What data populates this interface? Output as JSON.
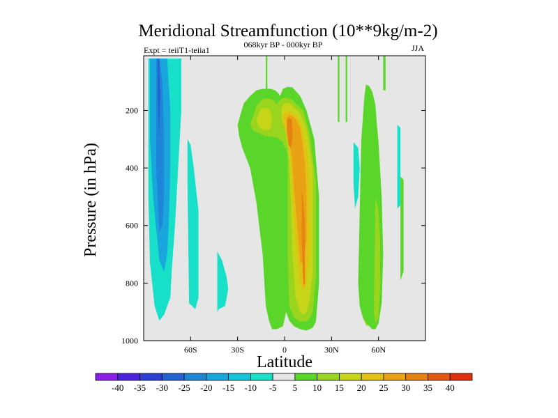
{
  "chart_data": {
    "type": "heatmap",
    "title": "Meridional Streamfunction (10**9kg/m-2)",
    "left_string": "Expt = teiiT1-teiia1",
    "center_string": "068kyr BP - 000kyr BP",
    "right_string": "JJA",
    "xlabel": "Latitude",
    "ylabel": "Pressure (in hPa)",
    "x_ticks": [
      {
        "value": -60,
        "label": "60S"
      },
      {
        "value": -30,
        "label": "30S"
      },
      {
        "value": 0,
        "label": "0"
      },
      {
        "value": 30,
        "label": "30N"
      },
      {
        "value": 60,
        "label": "60N"
      }
    ],
    "y_ticks": [
      {
        "value": 200,
        "label": "200"
      },
      {
        "value": 400,
        "label": "400"
      },
      {
        "value": 600,
        "label": "600"
      },
      {
        "value": 800,
        "label": "800"
      },
      {
        "value": 1000,
        "label": "1000"
      }
    ],
    "xlim": [
      -90,
      90
    ],
    "ylim": [
      1000,
      10
    ],
    "y_reversed": true,
    "grid": false,
    "background_color": "#e6e6e6",
    "colorbar": {
      "placement": "bottom",
      "levels": [
        -40,
        -35,
        -30,
        -25,
        -20,
        -15,
        -10,
        -5,
        5,
        10,
        15,
        20,
        25,
        30,
        35,
        40
      ],
      "labels": [
        "-40",
        "-35",
        "-30",
        "-25",
        "-20",
        "-15",
        "-10",
        "-5",
        "5",
        "10",
        "15",
        "20",
        "25",
        "30",
        "35",
        "40"
      ],
      "colors": [
        "#8a1fe6",
        "#4b22dd",
        "#2f3fd6",
        "#2661d4",
        "#1e86d6",
        "#18a6dc",
        "#14c4d9",
        "#18dfc8",
        "#e6e6e6",
        "#5ad62a",
        "#99d41e",
        "#c6d518",
        "#e1c114",
        "#e8a214",
        "#e58212",
        "#e2580f",
        "#df2f0c"
      ]
    },
    "regions": [
      {
        "level": -5,
        "lon": [
          -87,
          -86,
          -83,
          -80,
          -76,
          -72,
          -66,
          -66,
          -68,
          -70,
          -72,
          -73,
          -75,
          -77,
          -80,
          -83,
          -86,
          -87
        ],
        "p": [
          20,
          20,
          20,
          20,
          20,
          20,
          20,
          200,
          400,
          600,
          750,
          850,
          880,
          910,
          930,
          880,
          730,
          500
        ]
      },
      {
        "level": -15,
        "lon": [
          -86,
          -83,
          -79,
          -75,
          -73,
          -73,
          -74,
          -75,
          -77,
          -80,
          -84,
          -86
        ],
        "p": [
          20,
          20,
          20,
          20,
          200,
          400,
          600,
          700,
          760,
          720,
          500,
          300
        ]
      },
      {
        "level": -20,
        "lon": [
          -82,
          -80,
          -78,
          -77,
          -77,
          -78,
          -80,
          -82
        ],
        "p": [
          20,
          20,
          100,
          300,
          500,
          600,
          620,
          400
        ]
      },
      {
        "level": -25,
        "lon": [
          -81,
          -80,
          -79.5,
          -80,
          -81
        ],
        "p": [
          20,
          20,
          150,
          300,
          150
        ]
      },
      {
        "level": -5,
        "lon": [
          -62,
          -60,
          -58,
          -55,
          -55,
          -57,
          -61,
          -62
        ],
        "p": [
          300,
          320,
          400,
          550,
          850,
          890,
          870,
          450
        ]
      },
      {
        "level": -5,
        "lon": [
          -43,
          -40,
          -37,
          -36,
          -38,
          -42,
          -43,
          -43
        ],
        "p": [
          690,
          720,
          780,
          820,
          880,
          890,
          900,
          800
        ]
      },
      {
        "level": -5,
        "lon": [
          44,
          47,
          48,
          47,
          45,
          44
        ],
        "p": [
          310,
          330,
          400,
          500,
          540,
          450
        ]
      },
      {
        "level": -5,
        "lon": [
          72,
          74,
          74,
          72,
          72
        ],
        "p": [
          250,
          260,
          530,
          540,
          400
        ]
      },
      {
        "level": 5,
        "lon": [
          -12,
          -12,
          -11,
          -11
        ],
        "p": [
          10,
          200,
          200,
          10
        ]
      },
      {
        "level": 5,
        "lon": [
          34,
          34,
          35,
          35
        ],
        "p": [
          10,
          240,
          240,
          10
        ]
      },
      {
        "level": 5,
        "lon": [
          39,
          39,
          40,
          40
        ],
        "p": [
          10,
          240,
          240,
          10
        ]
      },
      {
        "level": 5,
        "lon": [
          63,
          63,
          64.5,
          64.5
        ],
        "p": [
          10,
          130,
          130,
          10
        ]
      },
      {
        "level": 5,
        "lon": [
          -30,
          -28,
          -26,
          -22,
          -18,
          -14,
          -9,
          -6,
          -4,
          -3,
          -1,
          2,
          5,
          10,
          14,
          19,
          22,
          22,
          20,
          18,
          14,
          10,
          6,
          3,
          1,
          -1,
          -5,
          -8,
          -10,
          -12,
          -14,
          -18,
          -22,
          -27,
          -29
        ],
        "p": [
          250,
          210,
          175,
          150,
          130,
          125,
          125,
          130,
          140,
          150,
          125,
          118,
          120,
          150,
          200,
          300,
          500,
          800,
          935,
          955,
          965,
          960,
          950,
          930,
          900,
          950,
          960,
          960,
          930,
          880,
          700,
          520,
          400,
          330,
          290
        ]
      },
      {
        "level": 10,
        "lon": [
          -22,
          -18,
          -14,
          -10,
          -7,
          -5,
          -4,
          -2,
          0,
          4,
          8,
          12,
          16,
          20,
          20,
          18,
          15,
          10,
          6,
          3,
          2,
          2,
          2,
          1,
          0,
          -1,
          -5,
          -9,
          -12,
          -16,
          -20
        ],
        "p": [
          250,
          185,
          160,
          158,
          165,
          180,
          170,
          160,
          155,
          160,
          180,
          200,
          280,
          450,
          780,
          900,
          930,
          935,
          920,
          880,
          700,
          500,
          360,
          330,
          330,
          310,
          295,
          290,
          290,
          280,
          270
        ]
      },
      {
        "level": 15,
        "lon": [
          -18,
          -15,
          -12,
          -9,
          -8,
          -9,
          -12,
          -15,
          -17
        ],
        "p": [
          230,
          195,
          190,
          200,
          235,
          265,
          270,
          262,
          250
        ]
      },
      {
        "level": 15,
        "lon": [
          -2,
          0,
          3,
          6,
          10,
          14,
          18,
          18,
          16,
          14,
          12,
          10,
          7,
          5,
          4,
          3,
          2,
          0,
          -2
        ],
        "p": [
          190,
          175,
          175,
          190,
          210,
          260,
          400,
          760,
          860,
          900,
          910,
          900,
          850,
          700,
          500,
          380,
          320,
          260,
          230
        ]
      },
      {
        "level": 20,
        "lon": [
          -1,
          1,
          4,
          7,
          10,
          14,
          16,
          16,
          14,
          12,
          10,
          7,
          5,
          4,
          2,
          0,
          -1
        ],
        "p": [
          215,
          200,
          205,
          215,
          240,
          330,
          450,
          700,
          800,
          830,
          800,
          650,
          500,
          380,
          300,
          260,
          240
        ]
      },
      {
        "level": 25,
        "lon": [
          1,
          3,
          5,
          7,
          10,
          13,
          14,
          14,
          12,
          10,
          8,
          6,
          5,
          3,
          2
        ],
        "p": [
          230,
          215,
          220,
          230,
          260,
          380,
          500,
          650,
          730,
          730,
          600,
          470,
          380,
          300,
          260
        ]
      },
      {
        "level": 30,
        "lon": [
          1.5,
          3,
          4.5,
          5,
          5,
          4,
          2.5,
          1.5
        ],
        "p": [
          235,
          225,
          232,
          255,
          300,
          330,
          320,
          270
        ]
      },
      {
        "level": 30,
        "lon": [
          11,
          12,
          13,
          13,
          12,
          11
        ],
        "p": [
          470,
          520,
          600,
          800,
          810,
          650
        ]
      },
      {
        "level": 10,
        "lon": [
          50,
          52,
          53,
          54,
          54,
          53,
          52,
          50,
          49,
          49.5
        ],
        "p": [
          480,
          500,
          650,
          800,
          930,
          950,
          945,
          920,
          800,
          600
        ]
      },
      {
        "level": 5,
        "lon": [
          52,
          54,
          56,
          58,
          59,
          60,
          62,
          63,
          62,
          60,
          58,
          56,
          54,
          52,
          50,
          48,
          47,
          48,
          49,
          51
        ],
        "p": [
          110,
          115,
          135,
          180,
          250,
          310,
          500,
          700,
          870,
          940,
          960,
          960,
          950,
          935,
          920,
          880,
          800,
          550,
          300,
          150
        ]
      },
      {
        "level": 10,
        "lon": [
          58,
          60,
          61,
          61,
          60,
          58,
          57,
          57.5
        ],
        "p": [
          500,
          550,
          650,
          820,
          920,
          940,
          900,
          700
        ]
      },
      {
        "level": 5,
        "lon": [
          74,
          76,
          76,
          74,
          74
        ],
        "p": [
          430,
          440,
          760,
          790,
          600
        ]
      }
    ]
  }
}
